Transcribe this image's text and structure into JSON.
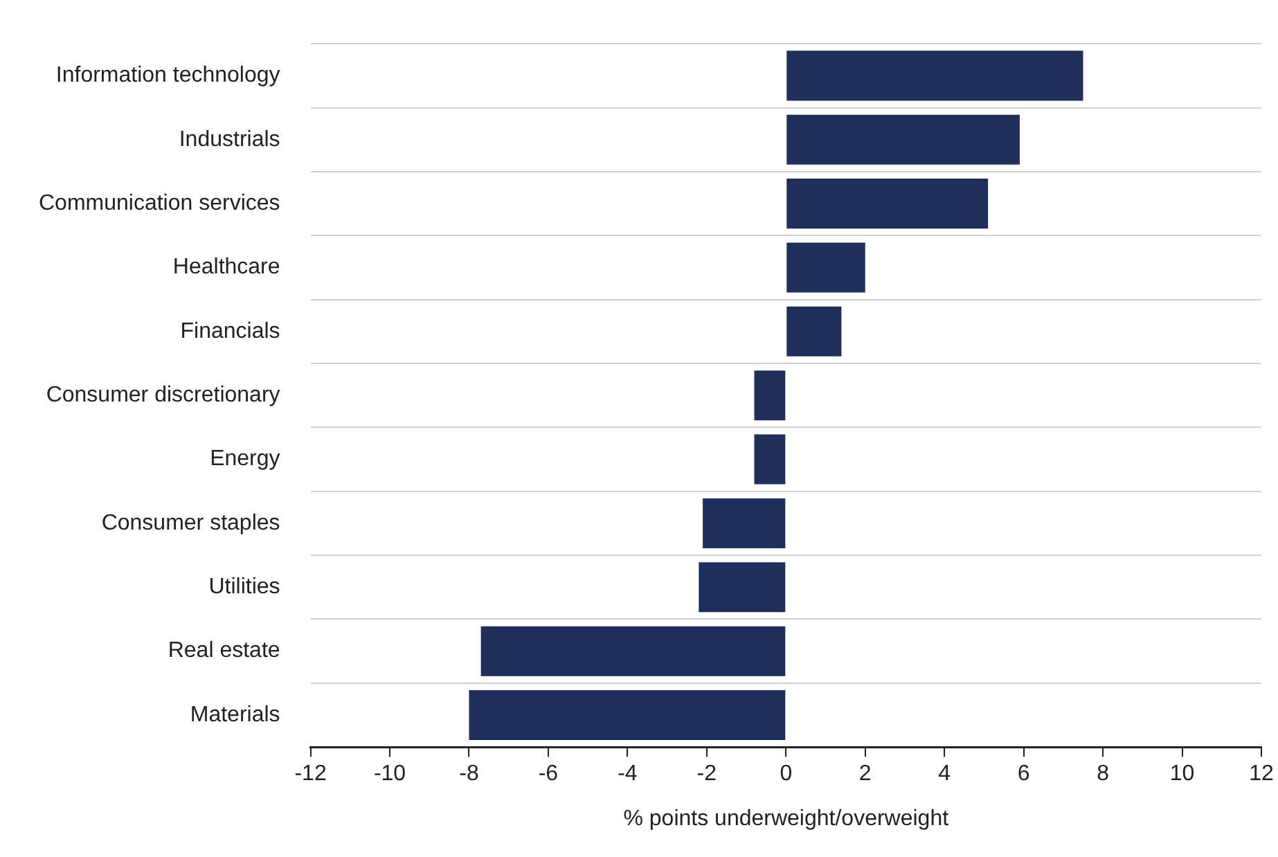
{
  "chart_data": {
    "type": "bar",
    "orientation": "horizontal",
    "xlabel": "% points underweight/overweight",
    "categories": [
      "Information technology",
      "Industrials",
      "Communication services",
      "Healthcare",
      "Financials",
      "Consumer discretionary",
      "Energy",
      "Consumer staples",
      "Utilities",
      "Real estate",
      "Materials"
    ],
    "values": [
      7.5,
      5.9,
      5.1,
      2.0,
      1.4,
      -0.8,
      -0.8,
      -2.1,
      -2.2,
      -7.7,
      -8.0
    ],
    "color": "#1f2f5a",
    "xlim": [
      -12,
      12
    ],
    "xticks": [
      -12,
      -10,
      -8,
      -6,
      -4,
      -2,
      0,
      2,
      4,
      6,
      8,
      10,
      12
    ],
    "grid": "y",
    "legend": false
  }
}
